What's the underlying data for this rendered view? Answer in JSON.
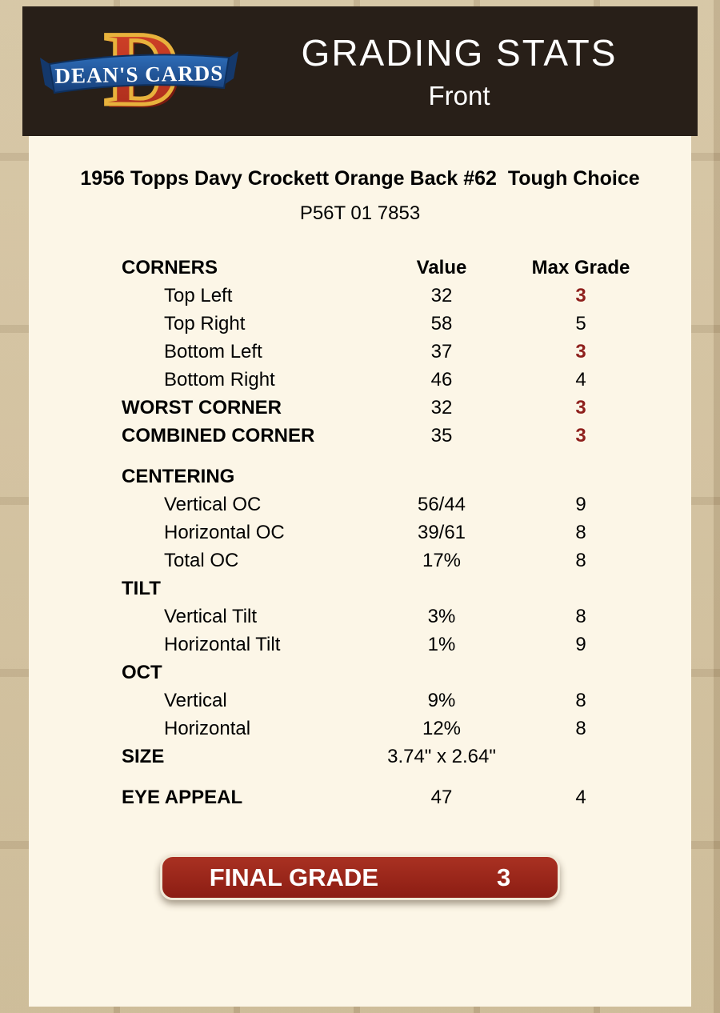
{
  "header": {
    "title": "GRADING STATS",
    "subtitle": "Front",
    "logo": {
      "letter": "D",
      "banner": "DEAN'S CARDS"
    }
  },
  "card": {
    "title": "1956 Topps Davy Crockett Orange Back #62  Tough Choice",
    "serial": "P56T 01 7853"
  },
  "table": {
    "header": {
      "label": "CORNERS",
      "value": "Value",
      "max": "Max Grade"
    },
    "rows": [
      {
        "label": "Top Left",
        "value": "32",
        "max": "3",
        "indent": true,
        "red": true
      },
      {
        "label": "Top Right",
        "value": "58",
        "max": "5",
        "indent": true
      },
      {
        "label": "Bottom Left",
        "value": "37",
        "max": "3",
        "indent": true,
        "red": true
      },
      {
        "label": "Bottom Right",
        "value": "46",
        "max": "4",
        "indent": true
      },
      {
        "label": "WORST CORNER",
        "value": "32",
        "max": "3",
        "bold": true,
        "red": true
      },
      {
        "label": "COMBINED CORNER",
        "value": "35",
        "max": "3",
        "bold": true,
        "red": true
      },
      {
        "spacer": true
      },
      {
        "label": "CENTERING",
        "value": "",
        "max": "",
        "bold": true
      },
      {
        "label": "Vertical OC",
        "value": "56/44",
        "max": "9",
        "indent": true
      },
      {
        "label": "Horizontal OC",
        "value": "39/61",
        "max": "8",
        "indent": true
      },
      {
        "label": "Total OC",
        "value": "17%",
        "max": "8",
        "indent": true
      },
      {
        "label": "TILT",
        "value": "",
        "max": "",
        "bold": true
      },
      {
        "label": "Vertical Tilt",
        "value": "3%",
        "max": "8",
        "indent": true
      },
      {
        "label": "Horizontal Tilt",
        "value": "1%",
        "max": "9",
        "indent": true
      },
      {
        "label": "OCT",
        "value": "",
        "max": "",
        "bold": true
      },
      {
        "label": "Vertical",
        "value": "9%",
        "max": "8",
        "indent": true
      },
      {
        "label": "Horizontal",
        "value": "12%",
        "max": "8",
        "indent": true
      },
      {
        "label": "SIZE",
        "value": "3.74\" x 2.64\"",
        "max": "",
        "bold": true
      },
      {
        "spacer": true
      },
      {
        "label": "EYE APPEAL",
        "value": "47",
        "max": "4",
        "bold": true
      }
    ]
  },
  "final_grade": {
    "label": "FINAL GRADE",
    "value": "3"
  },
  "colors": {
    "accent_red": "#8e1f1c",
    "header_bg": "#281f18",
    "panel_bg": "#fcf6e7",
    "page_bg": "#c6b28c",
    "logo_red": "#c23a2a",
    "logo_gold": "#e8b23c",
    "banner_blue": "#2e6db8"
  }
}
